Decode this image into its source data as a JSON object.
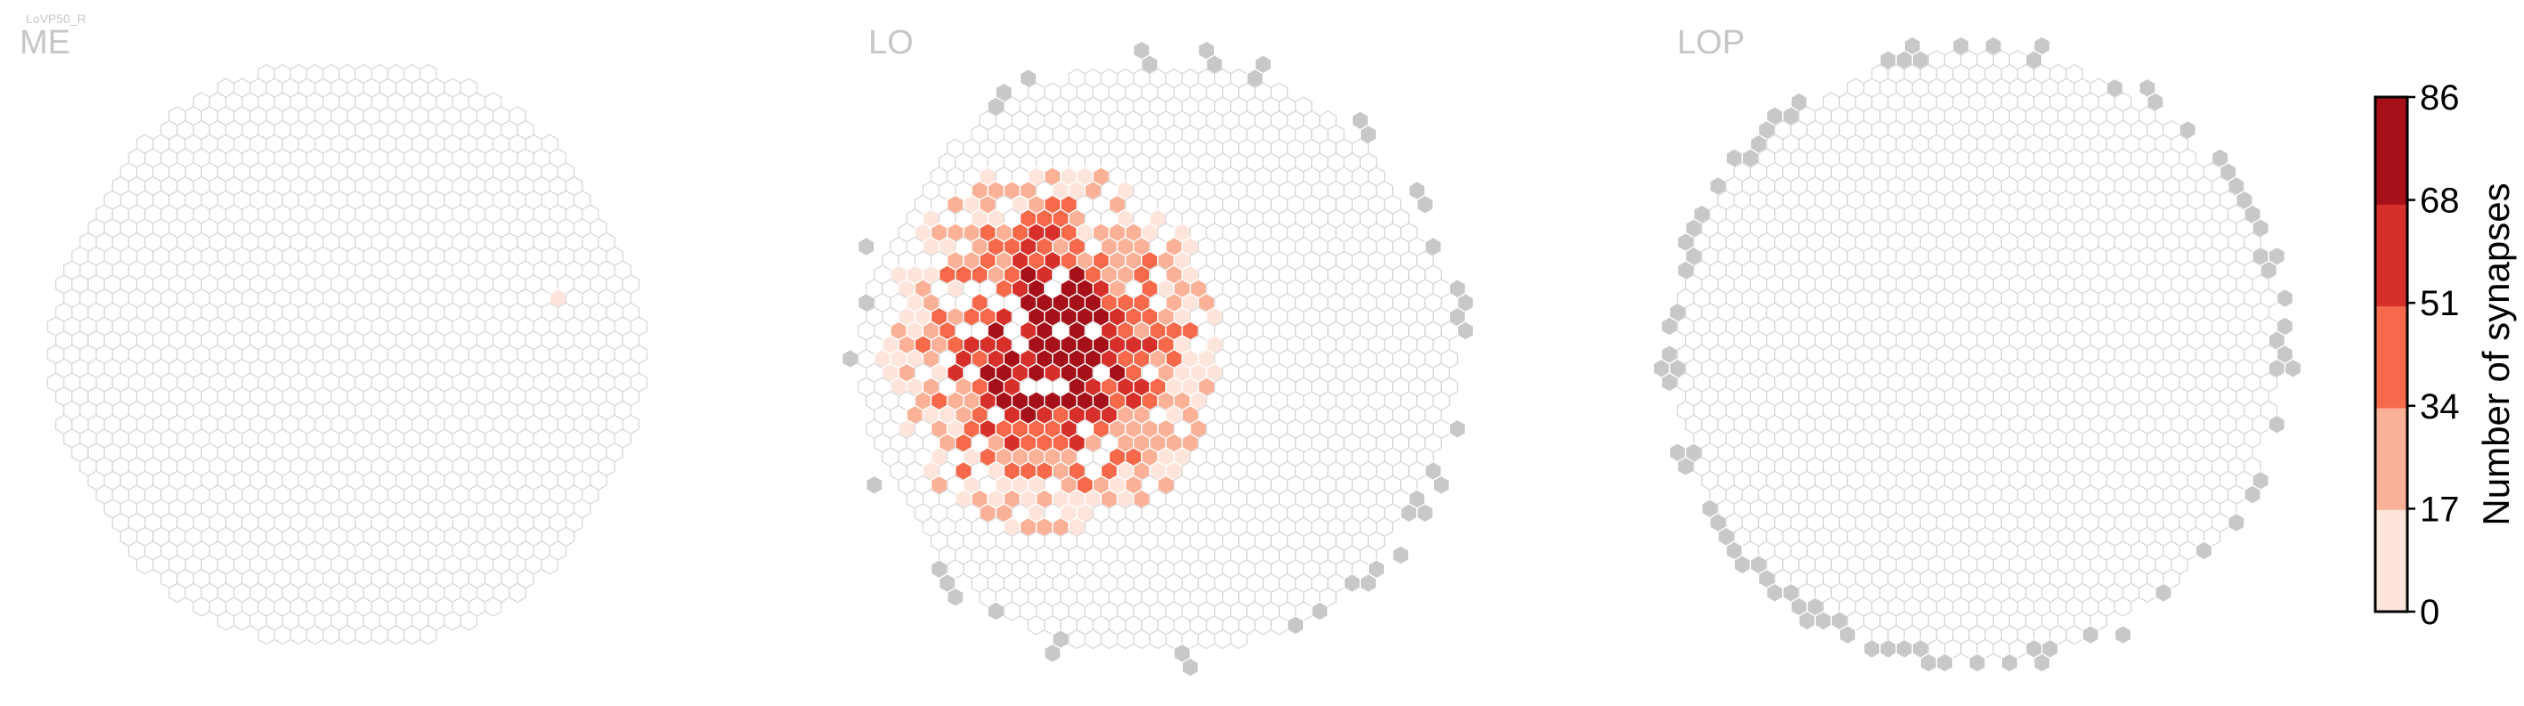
{
  "figure": {
    "corner_label": "LoVP50_R"
  },
  "chart_data": [
    {
      "type": "heatmap",
      "title": "ME",
      "layout": "hexagonal column grid",
      "empty_color": "#ffffff",
      "empty_stroke": "#d9d9d9",
      "cells": [
        {
          "region": "single column right of center",
          "synapses": 3
        }
      ],
      "note_values": "all other columns 0 synapses"
    },
    {
      "type": "heatmap",
      "title": "LO",
      "layout": "hexagonal column grid",
      "hotspot": {
        "synapses_max": 86,
        "center_row": 0.5,
        "center_col": 0.35
      },
      "outside_color": "#c8c8c8"
    },
    {
      "type": "heatmap",
      "title": "LOP",
      "layout": "hexagonal column grid",
      "outside_color": "#c8c8c8",
      "note_values": "all columns 0 synapses"
    }
  ],
  "colorbar": {
    "label": "Number of synapses",
    "ticks": [
      "0",
      "17",
      "34",
      "51",
      "68",
      "86"
    ],
    "bins": [
      {
        "range": [
          0,
          17
        ],
        "color": "#fde5dc"
      },
      {
        "range": [
          17,
          34
        ],
        "color": "#fbb197"
      },
      {
        "range": [
          34,
          51
        ],
        "color": "#f6694b"
      },
      {
        "range": [
          51,
          68
        ],
        "color": "#d7302b"
      },
      {
        "range": [
          68,
          86
        ],
        "color": "#a51019"
      }
    ]
  }
}
